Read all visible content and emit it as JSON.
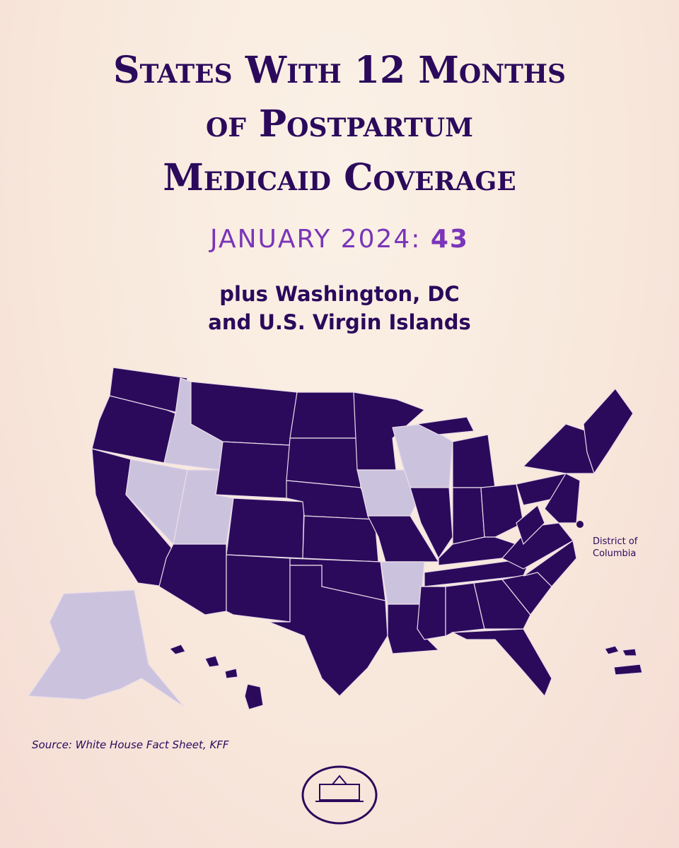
{
  "header": {
    "title_lines": [
      "States With 12 Months",
      "of Postpartum",
      "Medicaid Coverage"
    ],
    "date_label": "JANUARY 2024:",
    "count": 43,
    "note_lines": [
      "plus Washington, DC",
      "and U.S. Virgin Islands"
    ]
  },
  "map": {
    "annotation": "District of Columbia"
  },
  "footer": {
    "source": "Source: White House Fact Sheet, KFF"
  }
}
